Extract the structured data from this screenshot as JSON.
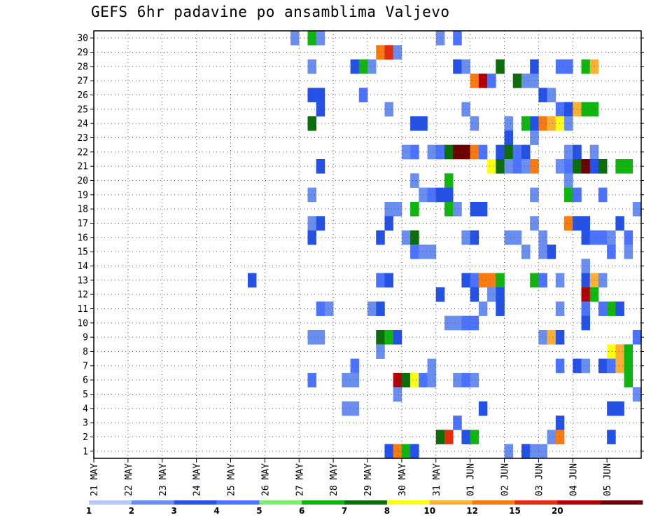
{
  "chart_data": {
    "type": "heatmap",
    "title": "GEFS 6hr padavine po ansamblima Valjevo",
    "xlabel": "",
    "ylabel": "",
    "x_tick_labels": [
      "21 MAY",
      "22 MAY",
      "23 MAY",
      "24 MAY",
      "25 MAY",
      "26 MAY",
      "27 MAY",
      "28 MAY",
      "29 MAY",
      "30 MAY",
      "31 MAY",
      "01 JUN",
      "02 JUN",
      "03 JUN",
      "04 JUN",
      "05 JUN"
    ],
    "y_tick_labels": [
      "1",
      "2",
      "3",
      "4",
      "5",
      "6",
      "7",
      "8",
      "9",
      "10",
      "11",
      "12",
      "13",
      "14",
      "15",
      "16",
      "17",
      "18",
      "19",
      "20",
      "21",
      "22",
      "23",
      "24",
      "25",
      "26",
      "27",
      "28",
      "29",
      "30"
    ],
    "x_unit": "6-hour step (4 per day)",
    "y_unit": "ensemble member",
    "grid": true,
    "legend": {
      "position": "bottom",
      "levels": [
        1,
        2,
        3,
        4,
        5,
        6,
        7,
        8,
        10,
        12,
        15,
        20
      ],
      "colors": [
        "#b4c8ff",
        "#6a8ef0",
        "#2552e6",
        "#4b73ff",
        "#7ced6e",
        "#10b60f",
        "#0c6d0b",
        "#ffff12",
        "#f9b035",
        "#f97a0f",
        "#e52c0b",
        "#b30000",
        "#6d0000"
      ]
    },
    "cells": [
      [
        23,
        30,
        1
      ],
      [
        25,
        30,
        5
      ],
      [
        26,
        30,
        1
      ],
      [
        40,
        30,
        1
      ],
      [
        42,
        30,
        3
      ],
      [
        69,
        30,
        3
      ],
      [
        70,
        30,
        3
      ],
      [
        71,
        30,
        6
      ],
      [
        33,
        29,
        9
      ],
      [
        34,
        29,
        10
      ],
      [
        35,
        29,
        1
      ],
      [
        25,
        28,
        1
      ],
      [
        30,
        28,
        2
      ],
      [
        31,
        28,
        5
      ],
      [
        32,
        28,
        1
      ],
      [
        42,
        28,
        2
      ],
      [
        43,
        28,
        1
      ],
      [
        47,
        28,
        6
      ],
      [
        51,
        28,
        2
      ],
      [
        54,
        28,
        3
      ],
      [
        55,
        28,
        3
      ],
      [
        57,
        28,
        5
      ],
      [
        58,
        28,
        8
      ],
      [
        44,
        27,
        9
      ],
      [
        45,
        27,
        11
      ],
      [
        46,
        27,
        3
      ],
      [
        49,
        27,
        6
      ],
      [
        50,
        27,
        1
      ],
      [
        51,
        27,
        1
      ],
      [
        25,
        26,
        2
      ],
      [
        26,
        26,
        2
      ],
      [
        31,
        26,
        3
      ],
      [
        52,
        26,
        2
      ],
      [
        53,
        26,
        1
      ],
      [
        26,
        25,
        2
      ],
      [
        34,
        25,
        1
      ],
      [
        43,
        25,
        1
      ],
      [
        54,
        25,
        3
      ],
      [
        55,
        25,
        2
      ],
      [
        56,
        25,
        8
      ],
      [
        57,
        25,
        5
      ],
      [
        58,
        25,
        5
      ],
      [
        25,
        24,
        6
      ],
      [
        37,
        24,
        2
      ],
      [
        38,
        24,
        2
      ],
      [
        44,
        24,
        1
      ],
      [
        48,
        24,
        1
      ],
      [
        50,
        24,
        5
      ],
      [
        51,
        24,
        2
      ],
      [
        52,
        24,
        9
      ],
      [
        53,
        24,
        8
      ],
      [
        54,
        24,
        7
      ],
      [
        55,
        24,
        1
      ],
      [
        48,
        23,
        2
      ],
      [
        51,
        23,
        1
      ],
      [
        36,
        22,
        1
      ],
      [
        37,
        22,
        3
      ],
      [
        39,
        22,
        1
      ],
      [
        40,
        22,
        3
      ],
      [
        41,
        22,
        6
      ],
      [
        42,
        22,
        12
      ],
      [
        43,
        22,
        12
      ],
      [
        44,
        22,
        9
      ],
      [
        45,
        22,
        3
      ],
      [
        47,
        22,
        2
      ],
      [
        48,
        22,
        6
      ],
      [
        49,
        22,
        3
      ],
      [
        50,
        22,
        2
      ],
      [
        55,
        22,
        1
      ],
      [
        56,
        22,
        2
      ],
      [
        58,
        22,
        1
      ],
      [
        26,
        21,
        2
      ],
      [
        46,
        21,
        7
      ],
      [
        47,
        21,
        6
      ],
      [
        48,
        21,
        1
      ],
      [
        49,
        21,
        3
      ],
      [
        50,
        21,
        1
      ],
      [
        51,
        21,
        9
      ],
      [
        54,
        21,
        1
      ],
      [
        55,
        21,
        3
      ],
      [
        56,
        21,
        6
      ],
      [
        57,
        21,
        12
      ],
      [
        58,
        21,
        2
      ],
      [
        59,
        21,
        6
      ],
      [
        61,
        21,
        5
      ],
      [
        62,
        21,
        5
      ],
      [
        37,
        20,
        1
      ],
      [
        41,
        20,
        5
      ],
      [
        55,
        20,
        1
      ],
      [
        25,
        19,
        1
      ],
      [
        38,
        19,
        1
      ],
      [
        39,
        19,
        3
      ],
      [
        40,
        19,
        2
      ],
      [
        41,
        19,
        2
      ],
      [
        51,
        19,
        1
      ],
      [
        55,
        19,
        5
      ],
      [
        56,
        19,
        3
      ],
      [
        59,
        19,
        3
      ],
      [
        34,
        18,
        1
      ],
      [
        35,
        18,
        1
      ],
      [
        37,
        18,
        5
      ],
      [
        41,
        18,
        5
      ],
      [
        42,
        18,
        1
      ],
      [
        44,
        18,
        2
      ],
      [
        45,
        18,
        2
      ],
      [
        63,
        18,
        1
      ],
      [
        25,
        17,
        1
      ],
      [
        26,
        17,
        2
      ],
      [
        34,
        17,
        2
      ],
      [
        51,
        17,
        1
      ],
      [
        55,
        17,
        9
      ],
      [
        56,
        17,
        2
      ],
      [
        57,
        17,
        2
      ],
      [
        61,
        17,
        2
      ],
      [
        25,
        16,
        2
      ],
      [
        33,
        16,
        2
      ],
      [
        36,
        16,
        1
      ],
      [
        37,
        16,
        6
      ],
      [
        43,
        16,
        1
      ],
      [
        44,
        16,
        2
      ],
      [
        48,
        16,
        1
      ],
      [
        49,
        16,
        1
      ],
      [
        52,
        16,
        1
      ],
      [
        57,
        16,
        2
      ],
      [
        58,
        16,
        3
      ],
      [
        59,
        16,
        3
      ],
      [
        60,
        16,
        1
      ],
      [
        62,
        16,
        3
      ],
      [
        37,
        15,
        3
      ],
      [
        38,
        15,
        1
      ],
      [
        39,
        15,
        1
      ],
      [
        50,
        15,
        1
      ],
      [
        52,
        15,
        1
      ],
      [
        53,
        15,
        2
      ],
      [
        60,
        15,
        3
      ],
      [
        62,
        15,
        1
      ],
      [
        57,
        14,
        1
      ],
      [
        18,
        13,
        2
      ],
      [
        33,
        13,
        3
      ],
      [
        34,
        13,
        2
      ],
      [
        43,
        13,
        2
      ],
      [
        44,
        13,
        3
      ],
      [
        45,
        13,
        9
      ],
      [
        46,
        13,
        9
      ],
      [
        47,
        13,
        5
      ],
      [
        51,
        13,
        5
      ],
      [
        52,
        13,
        3
      ],
      [
        54,
        13,
        1
      ],
      [
        57,
        13,
        2
      ],
      [
        58,
        13,
        8
      ],
      [
        59,
        13,
        1
      ],
      [
        40,
        12,
        2
      ],
      [
        44,
        12,
        2
      ],
      [
        46,
        12,
        1
      ],
      [
        47,
        12,
        2
      ],
      [
        57,
        12,
        11
      ],
      [
        58,
        12,
        5
      ],
      [
        26,
        11,
        3
      ],
      [
        27,
        11,
        1
      ],
      [
        32,
        11,
        1
      ],
      [
        33,
        11,
        2
      ],
      [
        45,
        11,
        1
      ],
      [
        47,
        11,
        2
      ],
      [
        54,
        11,
        1
      ],
      [
        57,
        11,
        3
      ],
      [
        59,
        11,
        3
      ],
      [
        60,
        11,
        5
      ],
      [
        61,
        11,
        2
      ],
      [
        41,
        10,
        1
      ],
      [
        42,
        10,
        1
      ],
      [
        43,
        10,
        3
      ],
      [
        44,
        10,
        3
      ],
      [
        57,
        10,
        2
      ],
      [
        25,
        9,
        1
      ],
      [
        26,
        9,
        1
      ],
      [
        33,
        9,
        6
      ],
      [
        34,
        9,
        5
      ],
      [
        35,
        9,
        2
      ],
      [
        52,
        9,
        1
      ],
      [
        53,
        9,
        8
      ],
      [
        54,
        9,
        2
      ],
      [
        63,
        9,
        3
      ],
      [
        33,
        8,
        1
      ],
      [
        60,
        8,
        7
      ],
      [
        61,
        8,
        8
      ],
      [
        62,
        8,
        5
      ],
      [
        30,
        7,
        3
      ],
      [
        39,
        7,
        1
      ],
      [
        54,
        7,
        3
      ],
      [
        56,
        7,
        2
      ],
      [
        57,
        7,
        1
      ],
      [
        59,
        7,
        2
      ],
      [
        60,
        7,
        3
      ],
      [
        61,
        7,
        8
      ],
      [
        62,
        7,
        5
      ],
      [
        25,
        6,
        3
      ],
      [
        29,
        6,
        1
      ],
      [
        30,
        6,
        1
      ],
      [
        35,
        6,
        11
      ],
      [
        36,
        6,
        6
      ],
      [
        37,
        6,
        7
      ],
      [
        38,
        6,
        3
      ],
      [
        39,
        6,
        1
      ],
      [
        42,
        6,
        1
      ],
      [
        43,
        6,
        3
      ],
      [
        44,
        6,
        1
      ],
      [
        62,
        6,
        5
      ],
      [
        35,
        5,
        1
      ],
      [
        63,
        5,
        1
      ],
      [
        29,
        4,
        1
      ],
      [
        30,
        4,
        1
      ],
      [
        45,
        4,
        2
      ],
      [
        60,
        4,
        2
      ],
      [
        61,
        4,
        2
      ],
      [
        42,
        3,
        3
      ],
      [
        54,
        3,
        2
      ],
      [
        40,
        2,
        6
      ],
      [
        41,
        2,
        10
      ],
      [
        43,
        2,
        2
      ],
      [
        44,
        2,
        5
      ],
      [
        53,
        2,
        1
      ],
      [
        54,
        2,
        9
      ],
      [
        60,
        2,
        2
      ],
      [
        34,
        1,
        2
      ],
      [
        35,
        1,
        9
      ],
      [
        36,
        1,
        5
      ],
      [
        37,
        1,
        2
      ],
      [
        48,
        1,
        1
      ],
      [
        50,
        1,
        2
      ],
      [
        51,
        1,
        1
      ],
      [
        52,
        1,
        1
      ]
    ]
  }
}
